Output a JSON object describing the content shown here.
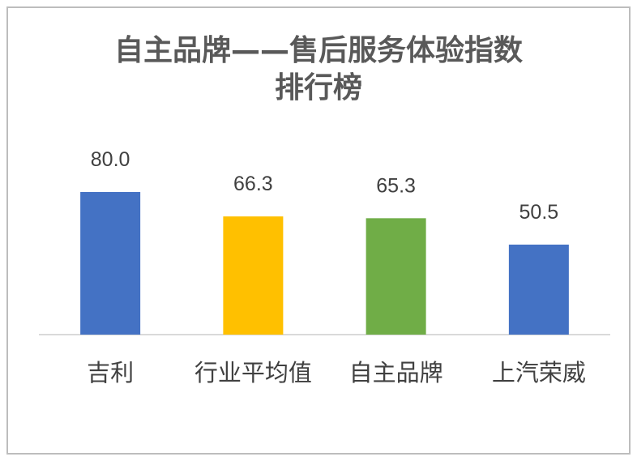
{
  "chart_data": {
    "type": "bar",
    "title_line1": "自主品牌——售后服务体验指数",
    "title_line2": "排行榜",
    "categories": [
      "吉利",
      "行业平均值",
      "自主品牌",
      "上汽荣威"
    ],
    "values": [
      80.0,
      66.3,
      65.3,
      50.5
    ],
    "value_labels": [
      "80.0",
      "66.3",
      "65.3",
      "50.5"
    ],
    "colors": [
      "#4472c4",
      "#ffc000",
      "#70ad47",
      "#4472c4"
    ],
    "ylim": [
      0,
      100
    ],
    "grid": false,
    "legend": "none"
  }
}
